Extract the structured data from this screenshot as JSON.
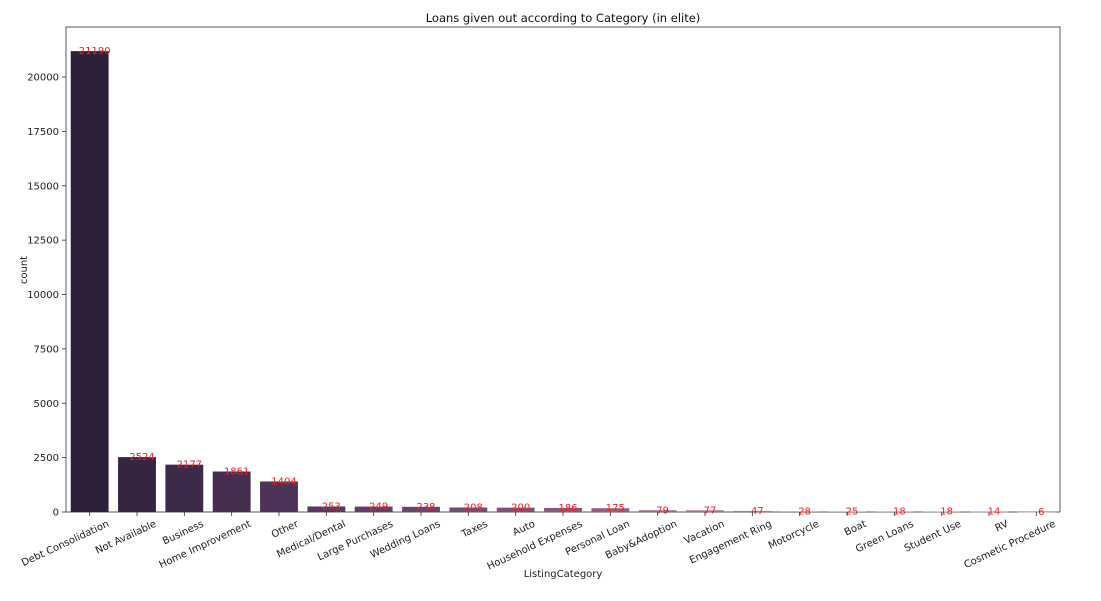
{
  "chart_data": {
    "type": "bar",
    "title": "Loans given out according to Category (in elite)",
    "xlabel": "ListingCategory",
    "ylabel": "count",
    "ylim": [
      0,
      22300
    ],
    "yticks": [
      0,
      2500,
      5000,
      7500,
      10000,
      12500,
      15000,
      17500,
      20000
    ],
    "grid": false,
    "categories": [
      "Debt Consolidation",
      "Not Available",
      "Business",
      "Home Improvement",
      "Other",
      "Medical/Dental",
      "Large Purchases",
      "Wedding Loans",
      "Taxes",
      "Auto",
      "Household Expenses",
      "Personal Loan",
      "Baby&Adoption",
      "Vacation",
      "Engagement Ring",
      "Motorcycle",
      "Boat",
      "Green Loans",
      "Student Use",
      "RV",
      "Cosmetic Procedure"
    ],
    "values": [
      21190,
      2524,
      2177,
      1861,
      1404,
      253,
      249,
      238,
      208,
      200,
      186,
      175,
      79,
      77,
      47,
      28,
      25,
      18,
      18,
      14,
      6
    ],
    "data_label_color": "#ff1a1a",
    "palette": [
      "#2d2139",
      "#352540",
      "#3d2a48",
      "#452e50",
      "#4e3358",
      "#583860",
      "#623d67",
      "#6c436f",
      "#774975",
      "#824f7b",
      "#8d5581",
      "#985c86",
      "#a3638b",
      "#ad6b90",
      "#b77395",
      "#c07c9a",
      "#c886a0",
      "#cf90a6",
      "#d69bad",
      "#dca6b4",
      "#e2b2bc"
    ]
  }
}
